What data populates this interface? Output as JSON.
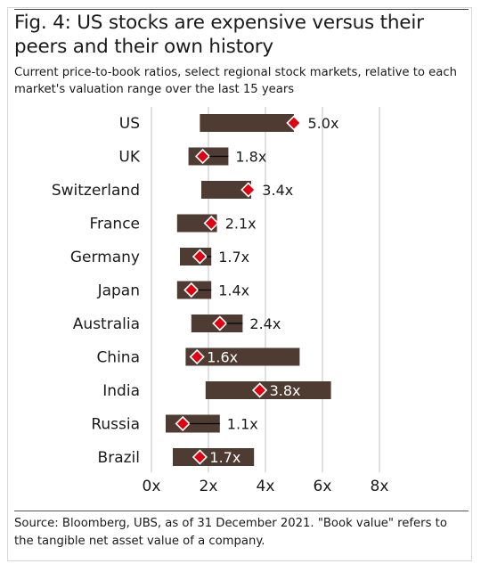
{
  "chart_data": {
    "type": "range-bar",
    "title": "Fig. 4: US stocks are expensive versus their peers and their own history",
    "subtitle": "Current price-to-book ratios, select regional stock markets, relative to each market's valuation range over the last 15 years",
    "categories": [
      "US",
      "UK",
      "Switzerland",
      "France",
      "Germany",
      "Japan",
      "Australia",
      "China",
      "India",
      "Russia",
      "Brazil"
    ],
    "series": [
      {
        "values": [
          [
            1.7,
            5.0
          ],
          [
            1.3,
            2.7
          ],
          [
            1.75,
            3.5
          ],
          [
            0.9,
            2.3
          ],
          [
            1.0,
            2.1
          ],
          [
            0.9,
            2.1
          ],
          [
            1.4,
            3.2
          ],
          [
            1.2,
            5.2
          ],
          [
            1.9,
            6.3
          ],
          [
            0.5,
            2.4
          ],
          [
            0.75,
            3.6
          ]
        ]
      },
      {
        "values": [
          5.0,
          1.8,
          3.4,
          2.1,
          1.7,
          1.4,
          2.4,
          1.6,
          3.8,
          1.1,
          1.7
        ]
      }
    ],
    "value_labels": [
      "5.0x",
      "1.8x",
      "3.4x",
      "2.1x",
      "1.7x",
      "1.4x",
      "2.4x",
      "1.6x",
      "3.8x",
      "1.1x",
      "1.7x"
    ],
    "x_ticks": [
      0,
      2,
      4,
      6,
      8
    ],
    "x_tick_labels": [
      "0x",
      "2x",
      "4x",
      "6x",
      "8x"
    ],
    "xlim": [
      0,
      8
    ],
    "grid": "vertical",
    "colors": {
      "range_bar": "#4e3b31",
      "current_marker": "#e20010",
      "marker_outline": "#ffffff",
      "grid": "#d9d9d9",
      "text": "#1a1a1a",
      "label_on_bar": "#ffffff"
    }
  },
  "source": "Source: Bloomberg, UBS, as of 31 December 2021. \"Book value\" refers to the tangible net asset value of a company."
}
